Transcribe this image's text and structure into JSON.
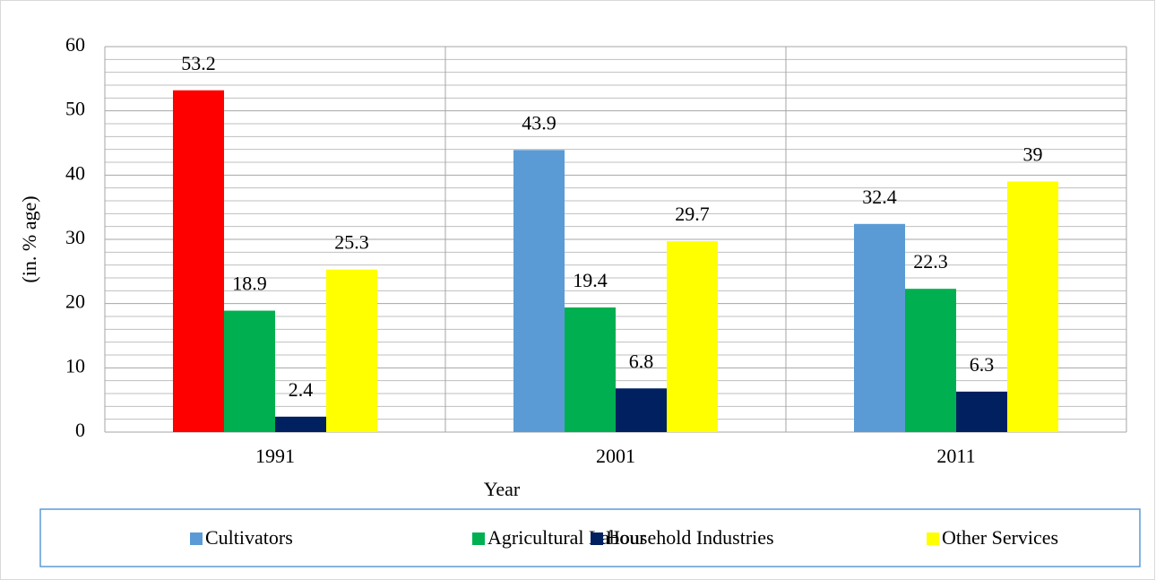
{
  "chart_data": {
    "type": "bar",
    "y_label": "(in. % age)",
    "x_label": "Year",
    "categories": [
      "1991",
      "2001",
      "2011"
    ],
    "series": [
      {
        "name": "Cultivators",
        "color": "#5b9bd5",
        "colors": [
          "#ff0000",
          "#5b9bd5",
          "#5b9bd5"
        ],
        "values": [
          53.2,
          43.9,
          32.4
        ]
      },
      {
        "name": "Agricultural Labour",
        "color": "#00b050",
        "values": [
          18.9,
          19.4,
          22.3
        ]
      },
      {
        "name": "Household Industries",
        "color": "#002060",
        "values": [
          2.4,
          6.8,
          6.3
        ]
      },
      {
        "name": "Other Services",
        "color": "#ffff00",
        "values": [
          25.3,
          29.7,
          39
        ]
      }
    ],
    "ylim": [
      0,
      60
    ],
    "yticks": [
      0,
      10,
      20,
      30,
      40,
      50,
      60
    ],
    "grid": true,
    "legend": "bottom"
  }
}
